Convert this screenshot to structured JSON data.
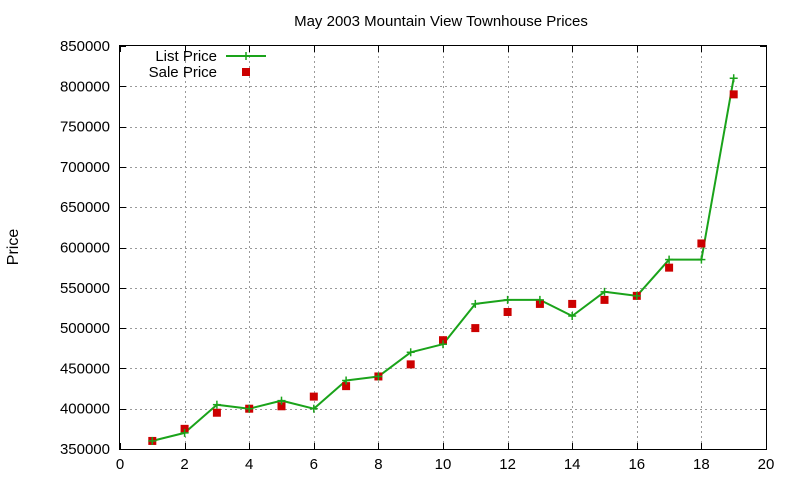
{
  "chart_data": {
    "type": "line",
    "title": "May 2003 Mountain View Townhouse Prices",
    "xlabel": "",
    "ylabel": "Price",
    "xlim": [
      0,
      20
    ],
    "ylim": [
      350000,
      850000
    ],
    "x_ticks": [
      0,
      2,
      4,
      6,
      8,
      10,
      12,
      14,
      16,
      18,
      20
    ],
    "y_ticks": [
      350000,
      400000,
      450000,
      500000,
      550000,
      600000,
      650000,
      700000,
      750000,
      800000,
      850000
    ],
    "grid": true,
    "legend_position": "top-left",
    "series": [
      {
        "name": "List Price",
        "style": "line-with-plus-markers",
        "color": "#1aa31a",
        "x": [
          1,
          2,
          3,
          4,
          5,
          6,
          7,
          8,
          9,
          10,
          11,
          12,
          13,
          14,
          15,
          16,
          17,
          18,
          19
        ],
        "y": [
          360000,
          370000,
          405000,
          400000,
          410000,
          400000,
          435000,
          440000,
          470000,
          480000,
          530000,
          535000,
          535000,
          515000,
          545000,
          540000,
          585000,
          585000,
          810000
        ]
      },
      {
        "name": "Sale Price",
        "style": "square-markers",
        "color": "#cc0000",
        "x": [
          1,
          2,
          3,
          4,
          5,
          6,
          7,
          8,
          9,
          10,
          11,
          12,
          13,
          14,
          15,
          16,
          17,
          18,
          19
        ],
        "y": [
          360000,
          375000,
          395000,
          400000,
          403000,
          415000,
          428000,
          440000,
          455000,
          485000,
          500000,
          520000,
          530000,
          530000,
          535000,
          540000,
          575000,
          605000,
          790000
        ]
      }
    ]
  }
}
